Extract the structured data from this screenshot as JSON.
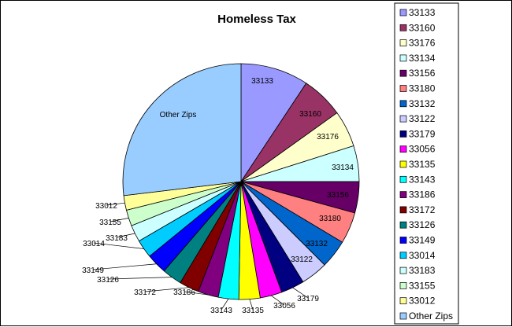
{
  "chart_data": {
    "type": "pie",
    "title": "Homeless Tax",
    "start_angle_deg": 0,
    "direction": "clockwise",
    "legend_position": "right",
    "slices": [
      {
        "label": "33133",
        "value": 9.3,
        "color": "#9999ff"
      },
      {
        "label": "33160",
        "value": 5.8,
        "color": "#993366"
      },
      {
        "label": "33176",
        "value": 5.0,
        "color": "#ffffcc"
      },
      {
        "label": "33134",
        "value": 4.9,
        "color": "#ccffff"
      },
      {
        "label": "33156",
        "value": 4.3,
        "color": "#660066"
      },
      {
        "label": "33180",
        "value": 4.3,
        "color": "#ff8080"
      },
      {
        "label": "33132",
        "value": 3.9,
        "color": "#0066cc"
      },
      {
        "label": "33122",
        "value": 3.7,
        "color": "#ccccff"
      },
      {
        "label": "33179",
        "value": 3.2,
        "color": "#000080"
      },
      {
        "label": "33056",
        "value": 3.0,
        "color": "#ff00ff"
      },
      {
        "label": "33135",
        "value": 2.9,
        "color": "#ffff00"
      },
      {
        "label": "33143",
        "value": 2.8,
        "color": "#00ffff"
      },
      {
        "label": "33186",
        "value": 2.8,
        "color": "#800080"
      },
      {
        "label": "33172",
        "value": 2.7,
        "color": "#800000"
      },
      {
        "label": "33126",
        "value": 2.7,
        "color": "#008080"
      },
      {
        "label": "33149",
        "value": 2.8,
        "color": "#0000ff"
      },
      {
        "label": "33014",
        "value": 2.5,
        "color": "#00ccff"
      },
      {
        "label": "33183",
        "value": 2.3,
        "color": "#ccffff"
      },
      {
        "label": "33155",
        "value": 2.2,
        "color": "#ccffcc"
      },
      {
        "label": "33012",
        "value": 2.0,
        "color": "#ffff99"
      },
      {
        "label": "Other Zips",
        "value": 26.9,
        "color": "#99ccff"
      }
    ]
  }
}
